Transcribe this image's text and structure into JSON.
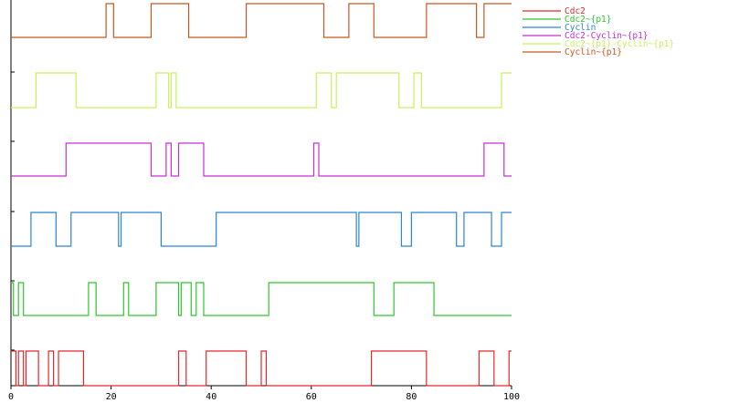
{
  "chart_data": {
    "type": "line",
    "title": "",
    "xlabel": "",
    "ylabel": "",
    "xlim": [
      0,
      100
    ],
    "xticks": [
      0,
      20,
      40,
      60,
      80,
      100
    ],
    "xtick_labels": [
      "0",
      "20",
      "40",
      "60",
      "80",
      "100"
    ],
    "grid": false,
    "legend_position": "top-right",
    "step": true,
    "series": [
      {
        "name": "Cdc2",
        "color": "#e8272a",
        "initial": 1,
        "toggles": [
          1,
          1.5,
          2.5,
          3,
          5.5,
          7.5,
          8.5,
          9.5,
          14.5,
          33.5,
          35,
          39,
          47,
          50,
          51,
          72,
          83,
          93.5,
          96.5,
          99.5
        ]
      },
      {
        "name": "Cdc2~{p1}",
        "color": "#2fc52f",
        "initial": 1,
        "toggles": [
          0.5,
          1.5,
          2.5,
          15.5,
          17,
          22.5,
          23.5,
          29,
          33.5,
          34,
          36,
          37,
          38.5,
          51.5,
          72.5,
          76.5,
          84.5
        ]
      },
      {
        "name": "Cyclin",
        "color": "#2a85d6",
        "initial": 0,
        "toggles": [
          4,
          9,
          12,
          21.5,
          22,
          30,
          41,
          69,
          69.5,
          78,
          80,
          89,
          90.5,
          96,
          98
        ]
      },
      {
        "name": "Cdc2-Cyclin~{p1}",
        "color": "#c72fd8",
        "initial": 0,
        "toggles": [
          11,
          28,
          31,
          32,
          33.5,
          38.5,
          60.5,
          61.5,
          94.5,
          98.5
        ]
      },
      {
        "name": "Cdc2~{p1}-Cyclin~{p1}",
        "color": "#c6f25d",
        "initial": 0,
        "toggles": [
          5,
          13,
          29,
          31.5,
          32,
          33,
          61,
          64,
          65,
          77.5,
          80.5,
          82,
          98
        ]
      },
      {
        "name": "Cyclin~{p1}",
        "color": "#c8581f",
        "initial": 0,
        "toggles": [
          19,
          20.5,
          28,
          35.5,
          47,
          62.5,
          67.5,
          72.5,
          83,
          93,
          94.5
        ]
      }
    ]
  },
  "axes": {
    "x_tick_labels": [
      "0",
      "20",
      "40",
      "60",
      "80",
      "100"
    ]
  },
  "legend": {
    "entries": [
      "Cdc2",
      "Cdc2~{p1}",
      "Cyclin",
      "Cdc2-Cyclin~{p1}",
      "Cdc2~{p1}-Cyclin~{p1}",
      "Cyclin~{p1}"
    ]
  }
}
